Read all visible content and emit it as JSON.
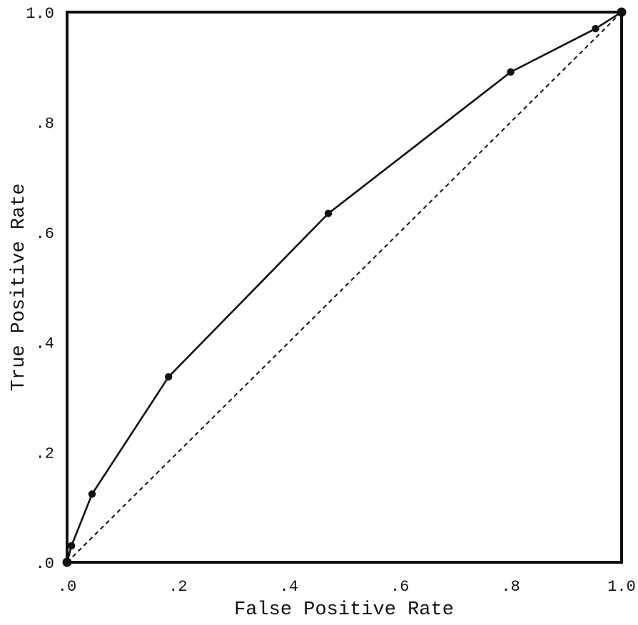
{
  "chart_data": {
    "type": "line",
    "xlabel": "False Positive Rate",
    "ylabel": "True Positive Rate",
    "xlim": [
      0,
      1
    ],
    "ylim": [
      0,
      1
    ],
    "x_ticks": [
      ".0",
      ".2",
      ".4",
      ".6",
      ".8",
      "1.0"
    ],
    "y_ticks": [
      ".0",
      ".2",
      ".4",
      ".6",
      ".8",
      "1.0"
    ],
    "grid": false,
    "legend": "none",
    "series": [
      {
        "style": "solid-with-markers",
        "color": "#111111",
        "x": [
          0.0,
          0.008,
          0.045,
          0.183,
          0.471,
          0.8,
          0.953,
          1.0
        ],
        "y": [
          0.0,
          0.03,
          0.124,
          0.337,
          0.634,
          0.891,
          0.97,
          1.0
        ]
      },
      {
        "style": "dashed",
        "color": "#111111",
        "x": [
          0,
          1
        ],
        "y": [
          0,
          1
        ]
      }
    ]
  }
}
